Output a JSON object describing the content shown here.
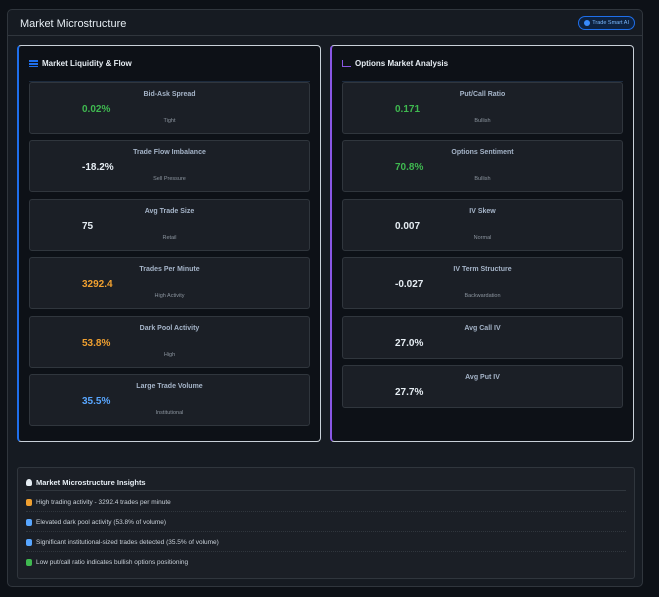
{
  "header": {
    "title": "Market Microstructure",
    "badge": "Trade Smart AI"
  },
  "liquidity": {
    "title": "Market Liquidity & Flow",
    "metrics": [
      {
        "label": "Bid-Ask Spread",
        "value": "0.02%",
        "sub": "Tight",
        "color": "#3fb950"
      },
      {
        "label": "Trade Flow Imbalance",
        "value": "-18.2%",
        "sub": "Sell Pressure",
        "color": "#e6edf3"
      },
      {
        "label": "Avg Trade Size",
        "value": "75",
        "sub": "Retail",
        "color": "#e6edf3"
      },
      {
        "label": "Trades Per Minute",
        "value": "3292.4",
        "sub": "High Activity",
        "color": "#f0a030"
      },
      {
        "label": "Dark Pool Activity",
        "value": "53.8%",
        "sub": "High",
        "color": "#f0a030"
      },
      {
        "label": "Large Trade Volume",
        "value": "35.5%",
        "sub": "Institutional",
        "color": "#58a6ff"
      }
    ]
  },
  "options": {
    "title": "Options Market Analysis",
    "metrics": [
      {
        "label": "Put/Call Ratio",
        "value": "0.171",
        "sub": "Bullish",
        "color": "#3fb950"
      },
      {
        "label": "Options Sentiment",
        "value": "70.8%",
        "sub": "Bullish",
        "color": "#3fb950"
      },
      {
        "label": "IV Skew",
        "value": "0.007",
        "sub": "Normal",
        "color": "#e6edf3"
      },
      {
        "label": "IV Term Structure",
        "value": "-0.027",
        "sub": "Backwardation",
        "color": "#e6edf3"
      },
      {
        "label": "Avg Call IV",
        "value": "27.0%",
        "color": "#e6edf3"
      },
      {
        "label": "Avg Put IV",
        "value": "27.7%",
        "color": "#e6edf3"
      }
    ]
  },
  "insights": {
    "title": "Market Microstructure Insights",
    "items": [
      {
        "text": "High trading activity - 3292.4 trades per minute",
        "icon": "fire-icon",
        "color": "#f0a030"
      },
      {
        "text": "Elevated dark pool activity (53.8% of volume)",
        "icon": "building-icon",
        "color": "#58a6ff"
      },
      {
        "text": "Significant institutional-sized trades detected (35.5% of volume)",
        "icon": "bank-icon",
        "color": "#58a6ff"
      },
      {
        "text": "Low put/call ratio indicates bullish options positioning",
        "icon": "rocket-icon",
        "color": "#3fb950"
      }
    ]
  }
}
